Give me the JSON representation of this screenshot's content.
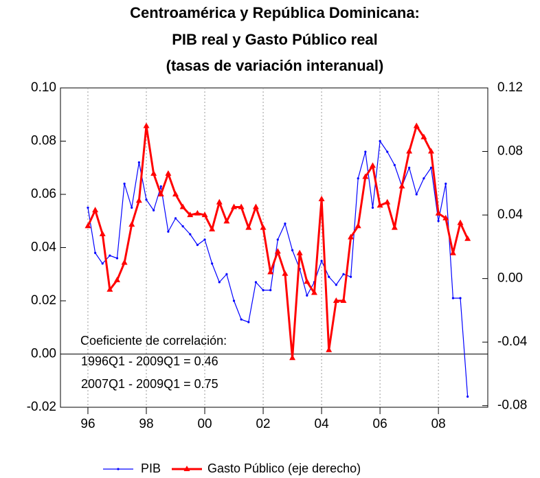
{
  "chart_data": {
    "type": "line",
    "title": [
      "Centroamérica y República Dominicana:",
      "PIB real y Gasto Público real",
      "(tasas de variación interanual)"
    ],
    "x": [
      1996,
      1996.25,
      1996.5,
      1996.75,
      1997,
      1997.25,
      1997.5,
      1997.75,
      1998,
      1998.25,
      1998.5,
      1998.75,
      1999,
      1999.25,
      1999.5,
      1999.75,
      2000,
      2000.25,
      2000.5,
      2000.75,
      2001,
      2001.25,
      2001.5,
      2001.75,
      2002,
      2002.25,
      2002.5,
      2002.75,
      2003,
      2003.25,
      2003.5,
      2003.75,
      2004,
      2004.25,
      2004.5,
      2004.75,
      2005,
      2005.25,
      2005.5,
      2005.75,
      2006,
      2006.25,
      2006.5,
      2006.75,
      2007,
      2007.25,
      2007.5,
      2007.75,
      2008,
      2008.25,
      2008.5,
      2008.75,
      2009
    ],
    "xlim": [
      1995.06,
      2009.69
    ],
    "xticks": [
      {
        "value": 1996,
        "label": "96"
      },
      {
        "value": 1998,
        "label": "98"
      },
      {
        "value": 2000,
        "label": "00"
      },
      {
        "value": 2002,
        "label": "02"
      },
      {
        "value": 2004,
        "label": "04"
      },
      {
        "value": 2006,
        "label": "06"
      },
      {
        "value": 2008,
        "label": "08"
      }
    ],
    "ylim": [
      -0.02,
      0.1
    ],
    "yticks": [
      -0.02,
      {
        "value": 0,
        "label": "0.00"
      },
      0.02,
      0.04,
      0.06,
      0.08,
      {
        "value": 0.1,
        "label": "0.10"
      }
    ],
    "y2lim": [
      -0.081,
      0.12
    ],
    "y2ticks": [
      -0.08,
      -0.04,
      {
        "value": 0,
        "label": "0.00"
      },
      0.04,
      0.08,
      0.12
    ],
    "zero_line": true,
    "series": [
      {
        "name": "PIB",
        "color": "#0000ff",
        "marker": "dot",
        "values": [
          0.055,
          0.038,
          0.034,
          0.037,
          0.036,
          0.064,
          0.055,
          0.072,
          0.058,
          0.054,
          0.063,
          0.046,
          0.051,
          0.048,
          0.045,
          0.041,
          0.043,
          0.034,
          0.027,
          0.03,
          0.02,
          0.013,
          0.012,
          0.027,
          0.024,
          0.024,
          0.043,
          0.049,
          0.039,
          0.032,
          0.022,
          0.027,
          0.035,
          0.029,
          0.026,
          0.03,
          0.029,
          0.066,
          0.076,
          0.055,
          0.08,
          0.076,
          0.071,
          0.063,
          0.07,
          0.06,
          0.066,
          0.07,
          0.05,
          0.064,
          0.021,
          0.021,
          -0.016
        ]
      },
      {
        "name": "Gasto Público (eje derecho)",
        "color": "#ff0000",
        "marker": "triangle",
        "axis": "y2",
        "values": [
          0.033,
          0.043,
          0.028,
          -0.007,
          -0.001,
          0.01,
          0.034,
          0.049,
          0.096,
          0.066,
          0.053,
          0.066,
          0.053,
          0.045,
          0.04,
          0.041,
          0.04,
          0.031,
          0.048,
          0.036,
          0.045,
          0.045,
          0.032,
          0.045,
          0.032,
          0.004,
          0.017,
          0.003,
          -0.05,
          0.016,
          -0.002,
          -0.009,
          0.05,
          -0.045,
          -0.014,
          -0.014,
          0.026,
          0.033,
          0.064,
          0.071,
          0.046,
          0.048,
          0.032,
          0.058,
          0.08,
          0.096,
          0.089,
          0.08,
          0.041,
          0.038,
          0.016,
          0.035,
          0.025
        ]
      }
    ],
    "annotations": [
      "Coeficiente de correlación:",
      "1996Q1 - 2009Q1 = 0.46",
      "2007Q1 - 2009Q1 = 0.75"
    ]
  }
}
